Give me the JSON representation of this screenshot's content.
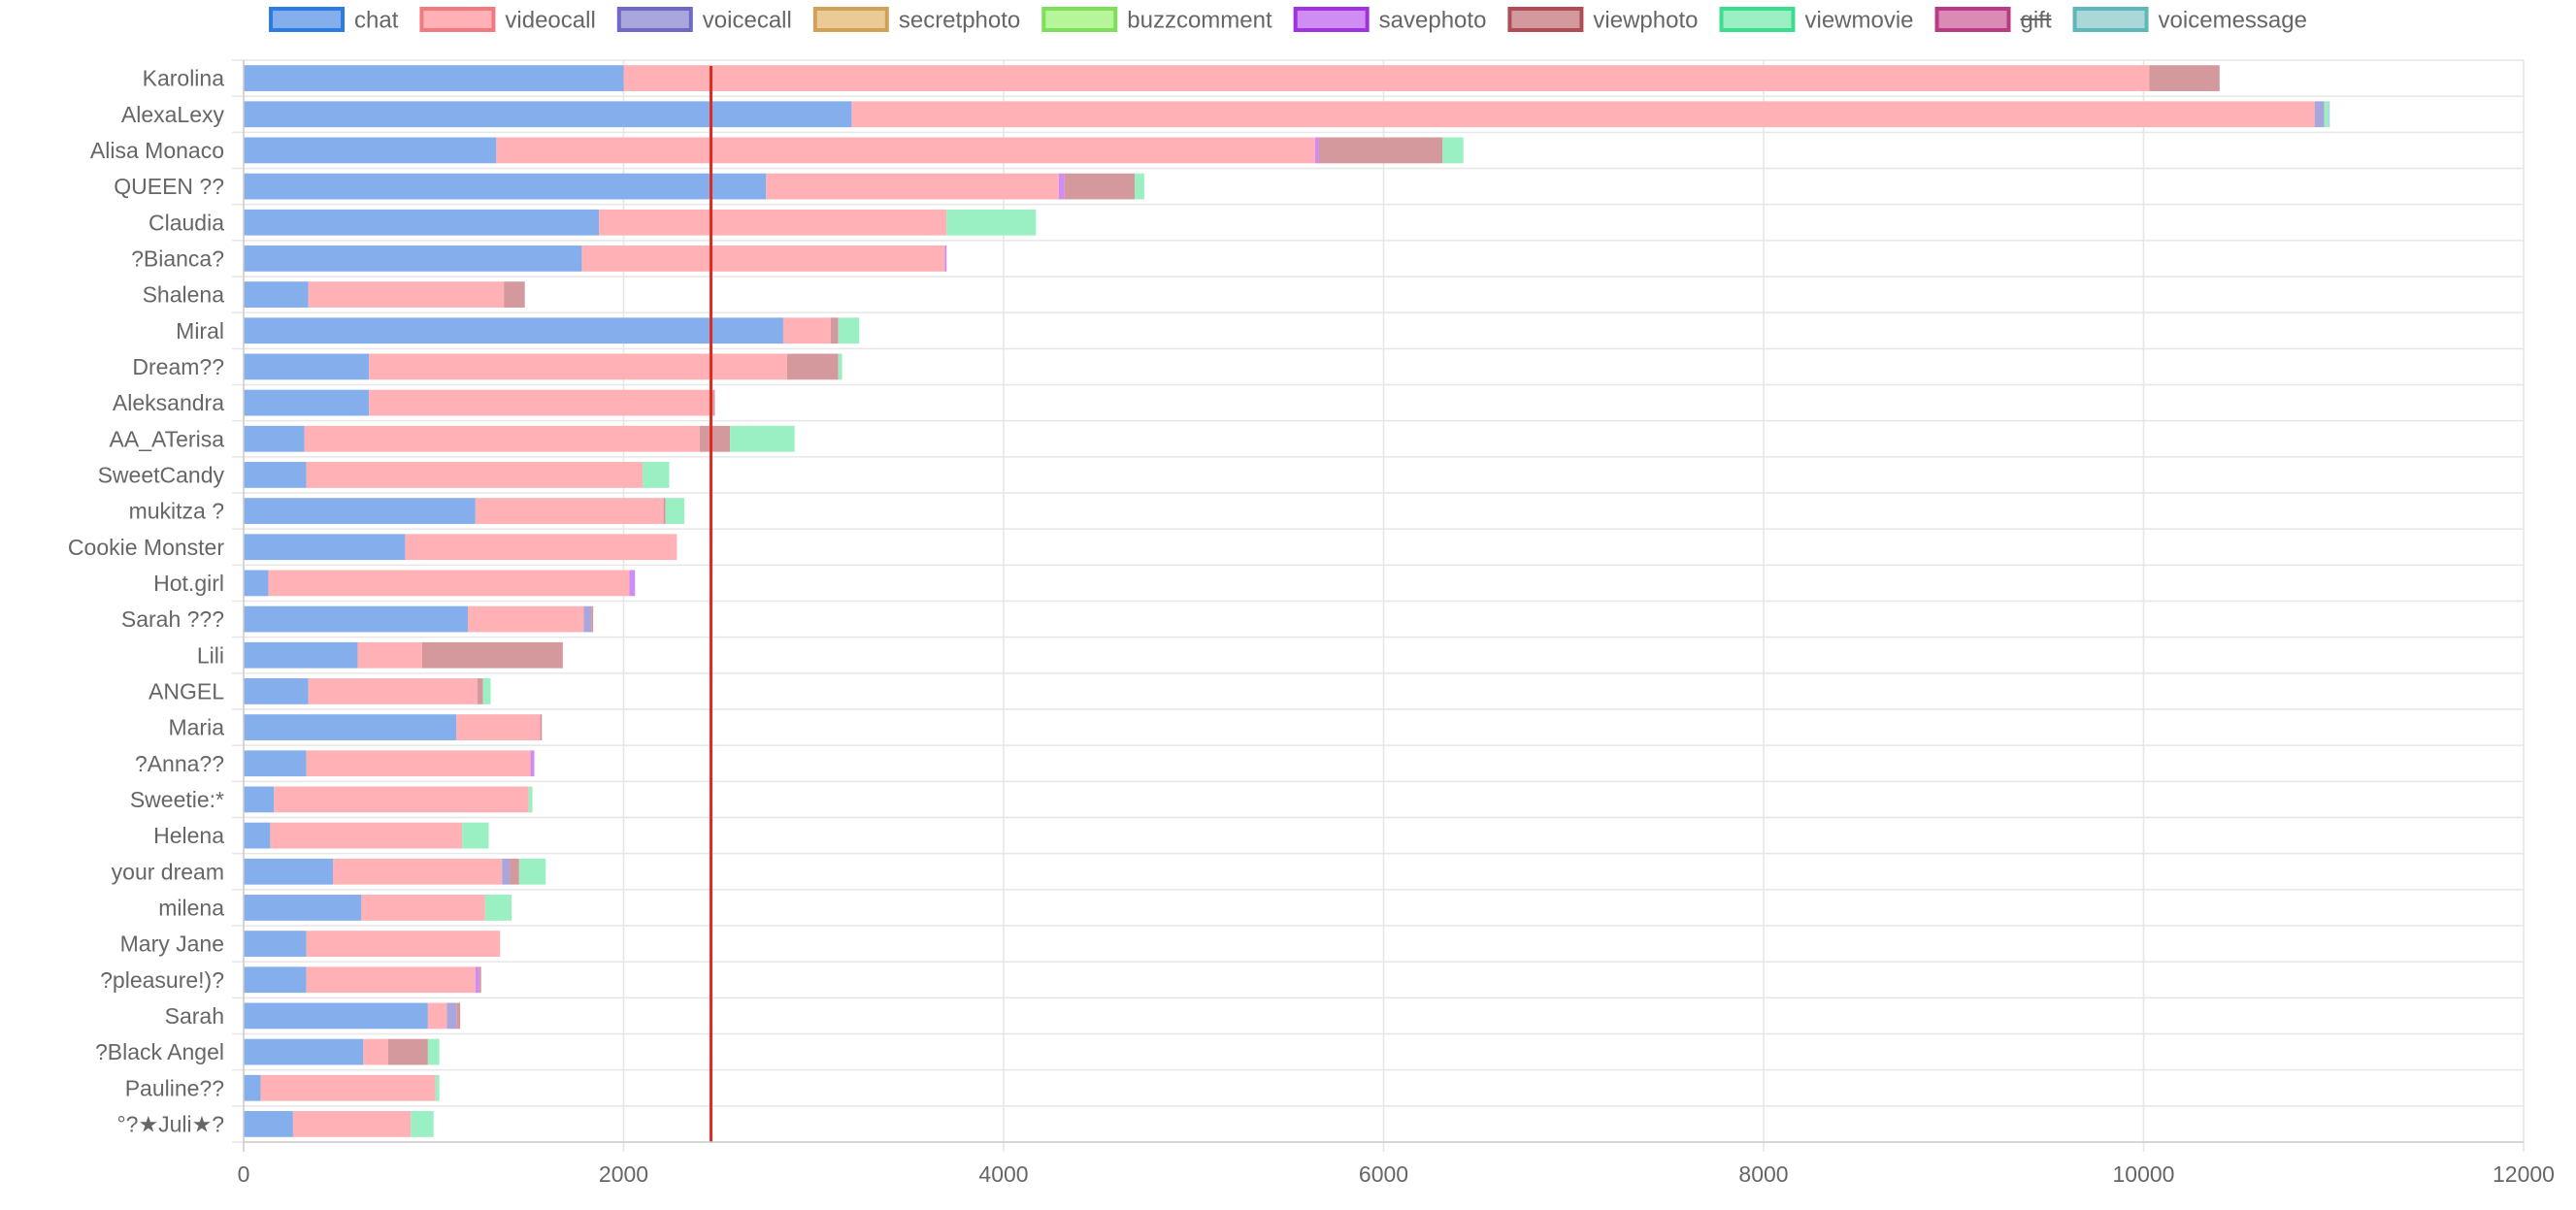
{
  "chart_data": {
    "type": "bar",
    "orientation": "horizontal",
    "stacked": true,
    "xlim": [
      0,
      12000
    ],
    "xticks": [
      0,
      2000,
      4000,
      6000,
      8000,
      10000,
      12000
    ],
    "grid": true,
    "legend_position": "top",
    "reference_line": {
      "value": 2460,
      "color": "#dd2b20"
    },
    "legend": [
      {
        "name": "chat",
        "fill": "#85aeec",
        "stroke": "#2d7be2",
        "hidden": false
      },
      {
        "name": "videocall",
        "fill": "#ffb1b5",
        "stroke": "#f07a80",
        "hidden": false
      },
      {
        "name": "voicecall",
        "fill": "#a9a6de",
        "stroke": "#6f68c4",
        "hidden": false
      },
      {
        "name": "secretphoto",
        "fill": "#ecca96",
        "stroke": "#d1a15a",
        "hidden": false
      },
      {
        "name": "buzzcomment",
        "fill": "#b6f59a",
        "stroke": "#7ee05a",
        "hidden": false
      },
      {
        "name": "savephoto",
        "fill": "#cf8cf2",
        "stroke": "#a032e0",
        "hidden": false
      },
      {
        "name": "viewphoto",
        "fill": "#d4999c",
        "stroke": "#b04c55",
        "hidden": false
      },
      {
        "name": "viewmovie",
        "fill": "#9af0c2",
        "stroke": "#3ddc8f",
        "hidden": false
      },
      {
        "name": "gift",
        "fill": "#d98bb5",
        "stroke": "#b83c84",
        "hidden": true
      },
      {
        "name": "voicemessage",
        "fill": "#aad8d8",
        "stroke": "#5fb7b7",
        "hidden": false
      }
    ],
    "categories": [
      "Karolina",
      "AlexaLexy",
      "Alisa Monaco",
      "QUEEN ??",
      "Claudia",
      "?Bianca?",
      "Shalena",
      "Miral",
      "Dream??",
      "Aleksandra",
      "AA_ATerisa",
      "SweetCandy",
      "mukitza ?",
      "Cookie Monster",
      "Hot.girl",
      "Sarah ???",
      "Lili",
      "ANGEL",
      "Maria",
      "?Anna??",
      "Sweetie:*",
      "Helena",
      "your dream",
      "milena",
      "Mary Jane",
      "?pleasure!)?",
      "Sarah",
      "?Black Angel",
      "Pauline??",
      "°?★Juli★?"
    ],
    "series": [
      {
        "name": "chat",
        "values": [
          2000,
          3200,
          1330,
          2750,
          1870,
          1780,
          340,
          2840,
          660,
          660,
          320,
          330,
          1220,
          850,
          130,
          1180,
          600,
          340,
          1120,
          330,
          160,
          140,
          470,
          620,
          330,
          330,
          970,
          630,
          90,
          260
        ]
      },
      {
        "name": "videocall",
        "values": [
          8030,
          7700,
          4310,
          1540,
          1830,
          1910,
          1030,
          250,
          2200,
          1810,
          2080,
          1770,
          990,
          1430,
          1900,
          610,
          340,
          890,
          440,
          1180,
          1340,
          1010,
          890,
          650,
          1020,
          890,
          100,
          130,
          920,
          620
        ]
      },
      {
        "name": "voicecall",
        "values": [
          0,
          50,
          0,
          0,
          0,
          0,
          0,
          0,
          0,
          0,
          0,
          0,
          0,
          0,
          0,
          40,
          0,
          0,
          0,
          0,
          0,
          0,
          40,
          0,
          0,
          0,
          50,
          0,
          0,
          0
        ]
      },
      {
        "name": "secretphoto",
        "values": [
          0,
          0,
          0,
          0,
          0,
          0,
          0,
          0,
          0,
          0,
          0,
          0,
          0,
          0,
          0,
          0,
          0,
          0,
          0,
          0,
          0,
          0,
          0,
          0,
          0,
          0,
          0,
          0,
          0,
          0
        ]
      },
      {
        "name": "buzzcomment",
        "values": [
          0,
          0,
          0,
          0,
          0,
          0,
          0,
          0,
          0,
          0,
          0,
          0,
          0,
          0,
          0,
          0,
          0,
          0,
          0,
          0,
          0,
          0,
          0,
          0,
          0,
          0,
          0,
          0,
          0,
          0
        ]
      },
      {
        "name": "savephoto",
        "values": [
          0,
          0,
          20,
          30,
          0,
          10,
          0,
          0,
          0,
          0,
          0,
          0,
          0,
          0,
          30,
          0,
          0,
          0,
          0,
          20,
          0,
          0,
          0,
          0,
          0,
          20,
          0,
          0,
          0,
          0
        ]
      },
      {
        "name": "viewphoto",
        "values": [
          370,
          0,
          650,
          370,
          0,
          0,
          110,
          40,
          270,
          10,
          160,
          0,
          10,
          0,
          0,
          10,
          740,
          30,
          10,
          0,
          0,
          0,
          50,
          0,
          0,
          10,
          20,
          210,
          0,
          0
        ]
      },
      {
        "name": "viewmovie",
        "values": [
          0,
          20,
          110,
          50,
          470,
          0,
          0,
          110,
          20,
          0,
          340,
          140,
          100,
          0,
          0,
          0,
          0,
          40,
          0,
          0,
          20,
          140,
          140,
          140,
          0,
          0,
          0,
          60,
          20,
          120
        ]
      },
      {
        "name": "voicemessage",
        "values": [
          0,
          10,
          0,
          0,
          0,
          0,
          0,
          0,
          0,
          0,
          0,
          0,
          0,
          0,
          0,
          0,
          0,
          0,
          0,
          0,
          0,
          0,
          0,
          0,
          0,
          0,
          0,
          0,
          0,
          0
        ]
      }
    ]
  }
}
